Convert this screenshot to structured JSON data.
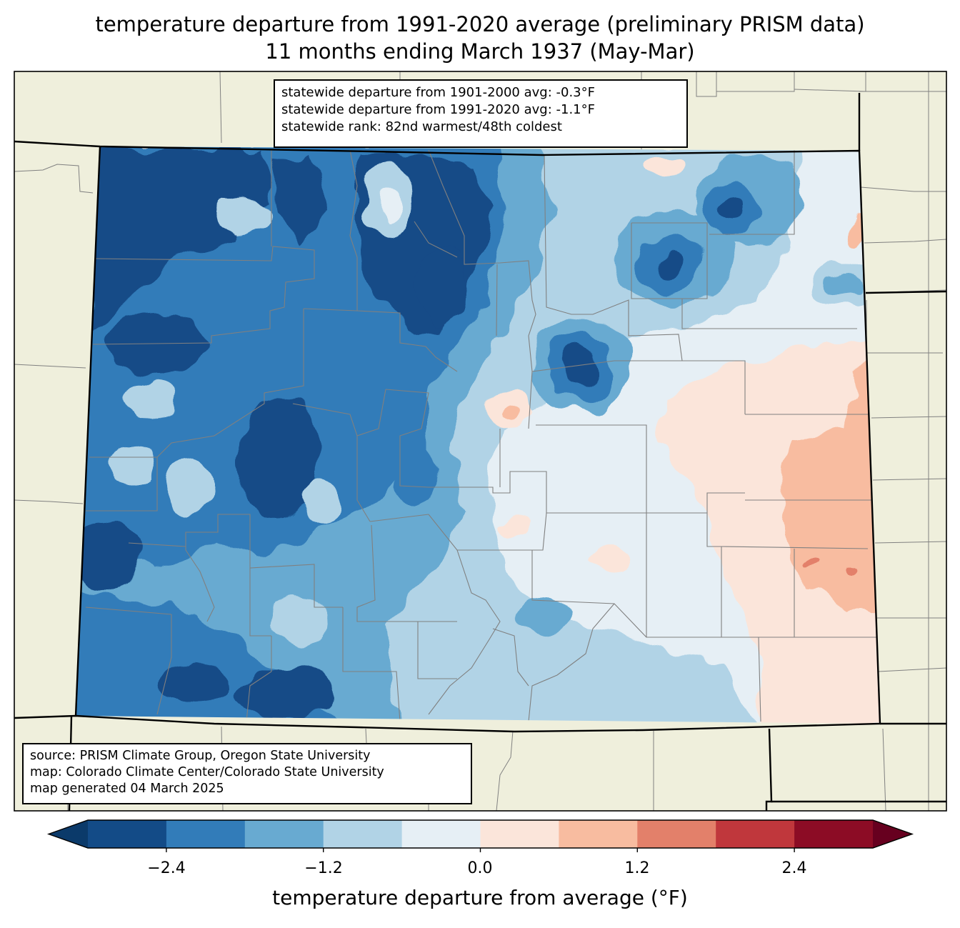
{
  "title": {
    "line1": "temperature departure from 1991-2020 average (preliminary PRISM data)",
    "line2": "11 months ending March 1937 (May-Mar)"
  },
  "stats_box": {
    "line1": "statewide departure from 1901-2000 avg: -0.3°F",
    "line2": "statewide departure from 1991-2020 avg: -1.1°F",
    "line3": "statewide rank: 82nd warmest/48th coldest"
  },
  "source_box": {
    "line1": "source: PRISM Climate Group, Oregon State University",
    "line2": "map: Colorado Climate Center/Colorado State University",
    "line3": "map generated 04 March 2025"
  },
  "colorbar": {
    "label": "temperature departure from average (°F)",
    "ticks": [
      "−2.4",
      "−1.2",
      "0.0",
      "1.2",
      "2.4"
    ],
    "bins": [
      {
        "from": -3.0,
        "to": -2.4,
        "color": "#134b87"
      },
      {
        "from": -2.4,
        "to": -1.8,
        "color": "#327cb9"
      },
      {
        "from": -1.8,
        "to": -1.2,
        "color": "#68aad1"
      },
      {
        "from": -1.2,
        "to": -0.6,
        "color": "#b1d3e6"
      },
      {
        "from": -0.6,
        "to": 0.0,
        "color": "#e6eff5"
      },
      {
        "from": 0.0,
        "to": 0.6,
        "color": "#fbe5da"
      },
      {
        "from": 0.6,
        "to": 1.2,
        "color": "#f8bca0"
      },
      {
        "from": 1.2,
        "to": 1.8,
        "color": "#e3806a"
      },
      {
        "from": 1.8,
        "to": 2.4,
        "color": "#c0373c"
      },
      {
        "from": 2.4,
        "to": 3.0,
        "color": "#8c0c25"
      }
    ],
    "under_color": "#0b3a6a",
    "over_color": "#67001f"
  },
  "colors": {
    "land": "#efefdc",
    "county_lines": "#808080",
    "state_border": "#000000"
  }
}
